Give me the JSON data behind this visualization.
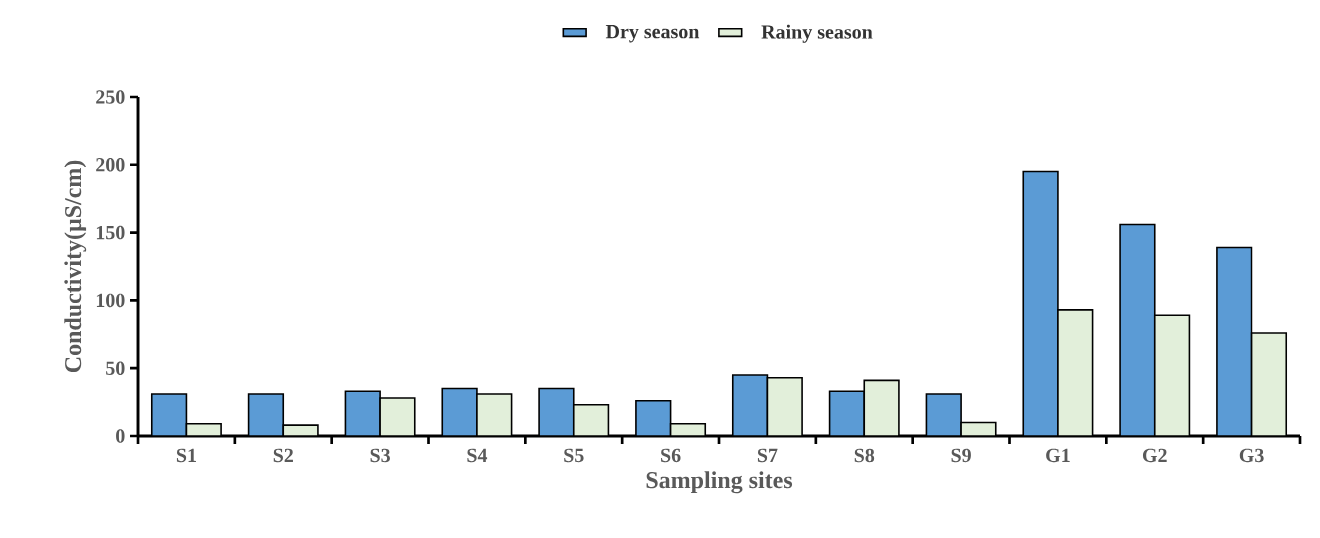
{
  "chart_data": {
    "type": "bar",
    "xlabel": "Sampling sites",
    "ylabel": "Conductivity(μS/cm)",
    "categories": [
      "S1",
      "S2",
      "S3",
      "S4",
      "S5",
      "S6",
      "S7",
      "S8",
      "S9",
      "G1",
      "G2",
      "G3"
    ],
    "series": [
      {
        "name": "Dry season",
        "color": "#5b9bd5",
        "values": [
          31,
          31,
          33,
          35,
          35,
          26,
          45,
          33,
          31,
          195,
          156,
          139
        ]
      },
      {
        "name": "Rainy season",
        "color": "#e2efda",
        "values": [
          9,
          8,
          28,
          31,
          23,
          9,
          43,
          41,
          10,
          93,
          89,
          76
        ]
      }
    ],
    "ylim": [
      0,
      250
    ],
    "yticks": [
      0,
      50,
      100,
      150,
      200,
      250
    ],
    "legend": "top"
  }
}
